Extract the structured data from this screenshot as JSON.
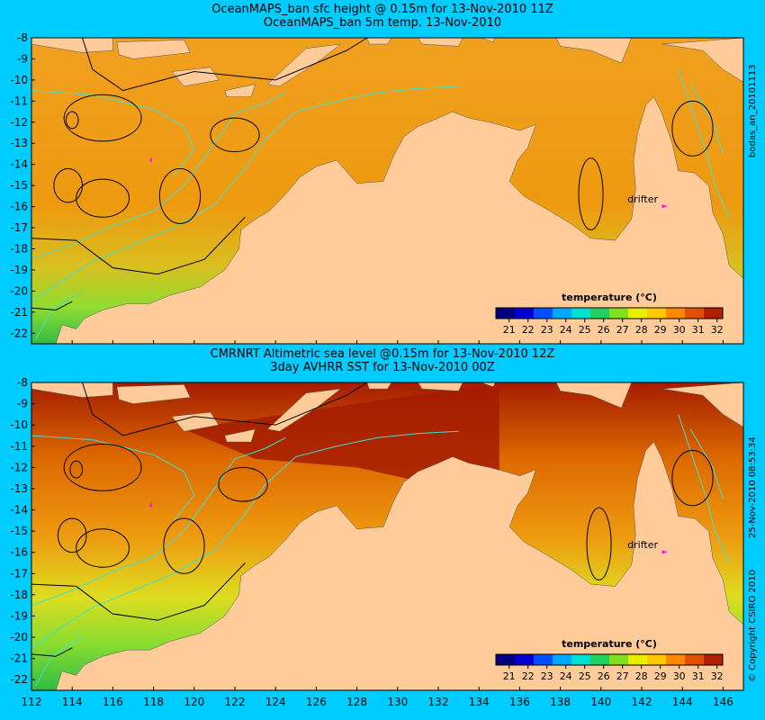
{
  "top_panel": {
    "title_line1": "OceanMAPS_ban sfc height @ 0.15m for 13-Nov-2010 11Z",
    "title_line2": "OceanMAPS_ban 5m temp. 13-Nov-2010",
    "side_label": "bodas_an_20101113",
    "drifter_label": "drifter",
    "colorbar_title": "temperature (°C)"
  },
  "bottom_panel": {
    "title_line1": "CMRNRT Altimetric sea level  @0.15m  for 13-Nov-2010 12Z",
    "title_line2": "3day AVHRR SST for 13-Nov-2010 00Z",
    "side_label_date": "25-Nov-2010 08:53:34",
    "side_label_copyright": "© Copyright CSIRO 2010",
    "drifter_label": "drifter",
    "colorbar_title": "temperature (°C)"
  },
  "axes": {
    "lat_ticks": [
      "-8",
      "-9",
      "-10",
      "-11",
      "-12",
      "-13",
      "-14",
      "-15",
      "-16",
      "-17",
      "-18",
      "-19",
      "-20",
      "-21",
      "-22"
    ],
    "lon_ticks": [
      "112",
      "114",
      "116",
      "118",
      "120",
      "122",
      "124",
      "126",
      "128",
      "130",
      "132",
      "134",
      "136",
      "138",
      "140",
      "142",
      "144",
      "146"
    ]
  },
  "colorbar": {
    "ticks": [
      "21",
      "22",
      "23",
      "24",
      "25",
      "26",
      "27",
      "28",
      "29",
      "30",
      "31",
      "32"
    ],
    "colors": [
      "#00007f",
      "#0000d0",
      "#0050ff",
      "#00a8ff",
      "#00e0d0",
      "#20d060",
      "#80e020",
      "#e8f000",
      "#ffc800",
      "#ff8800",
      "#e05000",
      "#b02000"
    ]
  },
  "colors": {
    "background": "#00ccff",
    "land": "#ffcc99",
    "contour_line": "#000000",
    "bathymetry_line": "#40e0d0",
    "drifter_marker": "#ff00ff",
    "sea_warm": "#ff9900",
    "sea_hot": "#b01a00",
    "sea_cool": "#66cc33"
  }
}
